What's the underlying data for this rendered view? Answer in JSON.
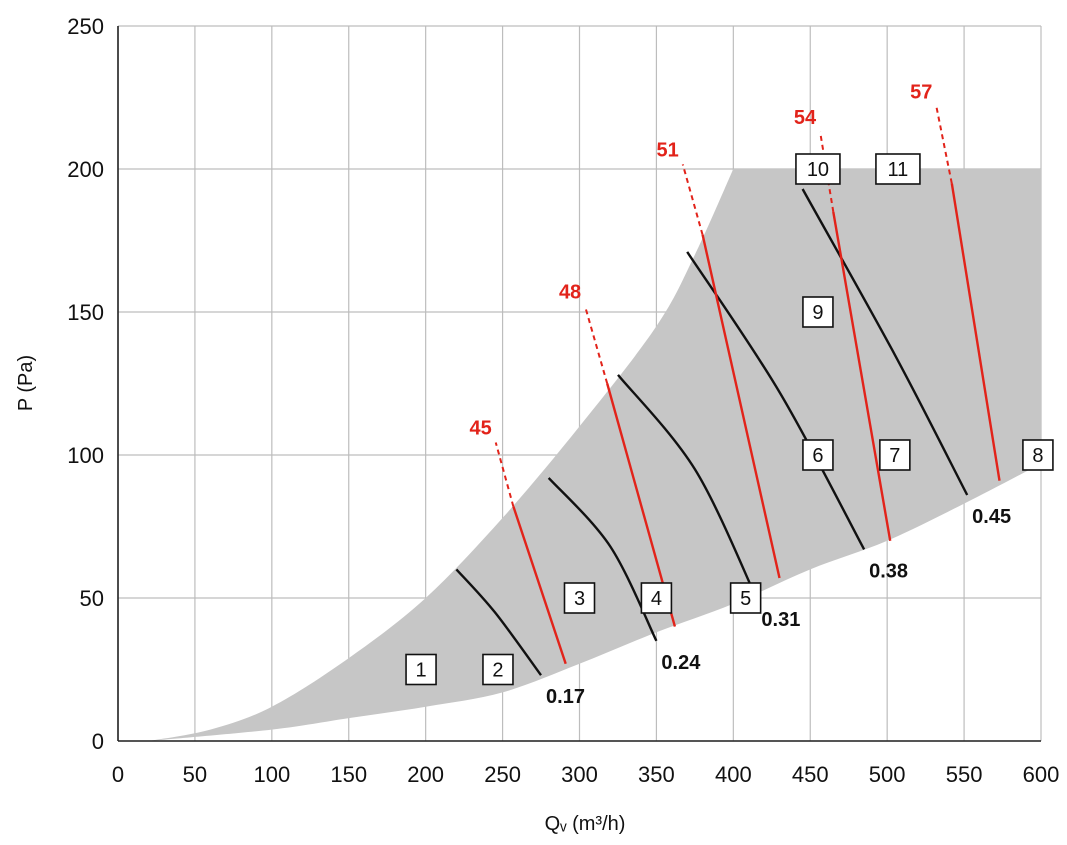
{
  "chart_data": {
    "type": "line",
    "xlabel": "Qᵥ (m³/h)",
    "ylabel": "P (Pa)",
    "xlim": [
      0,
      600
    ],
    "ylim": [
      0,
      250
    ],
    "xticks": [
      "0",
      "50",
      "100",
      "150",
      "200",
      "250",
      "300",
      "350",
      "400",
      "450",
      "500",
      "550",
      "600"
    ],
    "yticks": [
      "0",
      "50",
      "100",
      "150",
      "200",
      "250"
    ],
    "grid": true,
    "colors": {
      "region": "#c6c6c6",
      "speed_curve": "#111111",
      "noise_curve": "#e2231a",
      "grid": "#bdbdbd"
    },
    "operating_region": {
      "upper": [
        [
          20,
          0
        ],
        [
          60,
          4
        ],
        [
          100,
          12
        ],
        [
          150,
          29
        ],
        [
          200,
          50
        ],
        [
          250,
          78
        ],
        [
          300,
          110
        ],
        [
          350,
          145
        ],
        [
          375,
          170
        ],
        [
          400,
          200
        ],
        [
          600,
          200
        ]
      ],
      "lower": [
        [
          20,
          0
        ],
        [
          100,
          4
        ],
        [
          150,
          8
        ],
        [
          200,
          12
        ],
        [
          250,
          17
        ],
        [
          300,
          27
        ],
        [
          350,
          38
        ],
        [
          400,
          48
        ],
        [
          450,
          60
        ],
        [
          500,
          70
        ],
        [
          550,
          83
        ],
        [
          600,
          97
        ]
      ]
    },
    "speed_curves": [
      {
        "label": "0.17",
        "points": [
          [
            220,
            60
          ],
          [
            245,
            45
          ],
          [
            275,
            23
          ]
        ]
      },
      {
        "label": "0.24",
        "points": [
          [
            280,
            92
          ],
          [
            320,
            68
          ],
          [
            350,
            35
          ]
        ]
      },
      {
        "label": "0.31",
        "points": [
          [
            325,
            128
          ],
          [
            375,
            95
          ],
          [
            415,
            50
          ]
        ]
      },
      {
        "label": "0.38",
        "points": [
          [
            370,
            171
          ],
          [
            430,
            122
          ],
          [
            485,
            67
          ]
        ]
      },
      {
        "label": "0.45",
        "points": [
          [
            445,
            193
          ],
          [
            505,
            135
          ],
          [
            552,
            86
          ]
        ]
      }
    ],
    "noise_curves": [
      {
        "label": "45",
        "points": [
          [
            257,
            82
          ],
          [
            291,
            27
          ]
        ]
      },
      {
        "label": "48",
        "points": [
          [
            318,
            125
          ],
          [
            362,
            40
          ]
        ]
      },
      {
        "label": "51",
        "points": [
          [
            380,
            177
          ],
          [
            430,
            57
          ]
        ]
      },
      {
        "label": "54",
        "points": [
          [
            465,
            185
          ],
          [
            502,
            70
          ]
        ]
      },
      {
        "label": "57",
        "points": [
          [
            542,
            195
          ],
          [
            573,
            91
          ]
        ]
      }
    ],
    "regions": [
      "1",
      "2",
      "3",
      "4",
      "5",
      "6",
      "7",
      "8",
      "9",
      "10",
      "11"
    ]
  }
}
